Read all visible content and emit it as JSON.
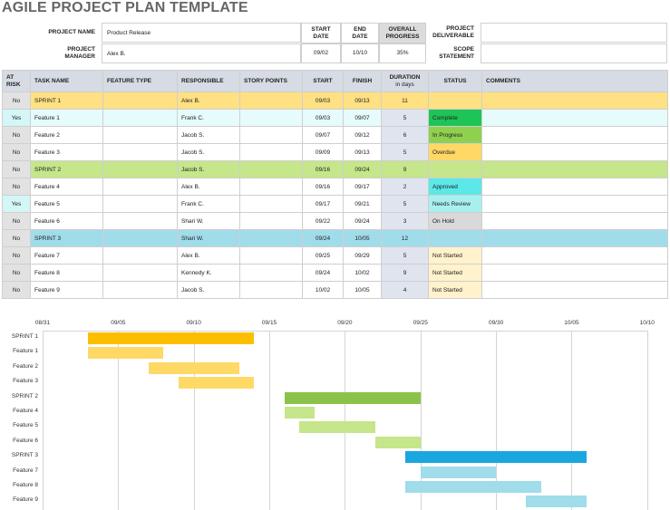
{
  "title": "AGILE PROJECT PLAN TEMPLATE",
  "summary": {
    "project_name_label": "PROJECT NAME",
    "project_name": "Product Release",
    "project_manager_label": "PROJECT MANAGER",
    "project_manager": "Alex B.",
    "start_date_label": "START DATE",
    "start_date": "09/02",
    "end_date_label": "END DATE",
    "end_date": "10/10",
    "overall_progress_label": "OVERALL PROGRESS",
    "overall_progress": "35%",
    "project_deliverable_label": "PROJECT DELIVERABLE",
    "project_deliverable": "",
    "scope_statement_label": "SCOPE STATEMENT",
    "scope_statement": ""
  },
  "table": {
    "headers": {
      "at_risk": "AT RISK",
      "task_name": "TASK NAME",
      "feature_type": "FEATURE TYPE",
      "responsible": "RESPONSIBLE",
      "story_points": "STORY POINTS",
      "start": "START",
      "finish": "FINISH",
      "duration": "DURATION",
      "duration_sub": "in days",
      "status": "STATUS",
      "comments": "COMMENTS"
    },
    "rows": [
      {
        "at_risk": "No",
        "task": "SPRINT 1",
        "feature_type": "",
        "responsible": "Alex B.",
        "story_points": "",
        "start": "09/03",
        "finish": "09/13",
        "duration": "11",
        "status": "",
        "comments": "",
        "kind": "sprint",
        "row_color": "#ffe082",
        "status_color": ""
      },
      {
        "at_risk": "Yes",
        "task": "Feature 1",
        "feature_type": "",
        "responsible": "Frank C.",
        "story_points": "",
        "start": "09/03",
        "finish": "09/07",
        "duration": "5",
        "status": "Complete",
        "comments": "",
        "kind": "feature",
        "row_color": "",
        "status_color": "#1fc457"
      },
      {
        "at_risk": "No",
        "task": "Feature 2",
        "feature_type": "",
        "responsible": "Jacob S.",
        "story_points": "",
        "start": "09/07",
        "finish": "09/12",
        "duration": "6",
        "status": "In Progress",
        "comments": "",
        "kind": "feature",
        "row_color": "",
        "status_color": "#8fd14f"
      },
      {
        "at_risk": "No",
        "task": "Feature 3",
        "feature_type": "",
        "responsible": "Jacob S.",
        "story_points": "",
        "start": "09/09",
        "finish": "09/13",
        "duration": "5",
        "status": "Overdue",
        "comments": "",
        "kind": "feature",
        "row_color": "",
        "status_color": "#ffd866"
      },
      {
        "at_risk": "No",
        "task": "SPRINT 2",
        "feature_type": "",
        "responsible": "Jacob S.",
        "story_points": "",
        "start": "09/16",
        "finish": "09/24",
        "duration": "9",
        "status": "",
        "comments": "",
        "kind": "sprint",
        "row_color": "#c5e68a",
        "status_color": ""
      },
      {
        "at_risk": "No",
        "task": "Feature 4",
        "feature_type": "",
        "responsible": "Alex B.",
        "story_points": "",
        "start": "09/16",
        "finish": "09/17",
        "duration": "2",
        "status": "Approved",
        "comments": "",
        "kind": "feature",
        "row_color": "",
        "status_color": "#5ce8e8"
      },
      {
        "at_risk": "Yes",
        "task": "Feature 5",
        "feature_type": "",
        "responsible": "Frank C.",
        "story_points": "",
        "start": "09/17",
        "finish": "09/21",
        "duration": "5",
        "status": "Needs Review",
        "comments": "",
        "kind": "feature",
        "row_color": "",
        "status_color": "#a8f0f0"
      },
      {
        "at_risk": "No",
        "task": "Feature 6",
        "feature_type": "",
        "responsible": "Shari W.",
        "story_points": "",
        "start": "09/22",
        "finish": "09/24",
        "duration": "3",
        "status": "On Hold",
        "comments": "",
        "kind": "feature",
        "row_color": "",
        "status_color": "#d9d9d9"
      },
      {
        "at_risk": "No",
        "task": "SPRINT 3",
        "feature_type": "",
        "responsible": "Shari W.",
        "story_points": "",
        "start": "09/24",
        "finish": "10/05",
        "duration": "12",
        "status": "",
        "comments": "",
        "kind": "sprint",
        "row_color": "#a0dcea",
        "status_color": ""
      },
      {
        "at_risk": "No",
        "task": "Feature 7",
        "feature_type": "",
        "responsible": "Alex B.",
        "story_points": "",
        "start": "09/25",
        "finish": "09/29",
        "duration": "5",
        "status": "Not Started",
        "comments": "",
        "kind": "feature",
        "row_color": "",
        "status_color": "#fff2cc"
      },
      {
        "at_risk": "No",
        "task": "Feature 8",
        "feature_type": "",
        "responsible": "Kennedy K.",
        "story_points": "",
        "start": "09/24",
        "finish": "10/02",
        "duration": "9",
        "status": "Not Started",
        "comments": "",
        "kind": "feature",
        "row_color": "",
        "status_color": "#fff2cc"
      },
      {
        "at_risk": "No",
        "task": "Feature 9",
        "feature_type": "",
        "responsible": "Jacob S.",
        "story_points": "",
        "start": "10/02",
        "finish": "10/05",
        "duration": "4",
        "status": "Not Started",
        "comments": "",
        "kind": "feature",
        "row_color": "",
        "status_color": "#fff2cc"
      }
    ]
  },
  "colors": {
    "header_bg": "#d6dbe4",
    "at_risk_yes": "#d4f6f6",
    "at_risk_no": "#e2e2e2",
    "duration_cell": "#dfe4ef",
    "feature_row_sprint1": "#e6fbfb"
  },
  "chart_data": {
    "type": "gantt",
    "x_ticks": [
      "08/31",
      "09/05",
      "09/10",
      "09/15",
      "09/20",
      "09/25",
      "09/30",
      "10/05",
      "10/10"
    ],
    "tasks": [
      {
        "name": "SPRINT 1",
        "start_day": 3,
        "end_day": 14,
        "color": "#fbbf00"
      },
      {
        "name": "Feature 1",
        "start_day": 3,
        "end_day": 8,
        "color": "#ffd966"
      },
      {
        "name": "Feature 2",
        "start_day": 7,
        "end_day": 13,
        "color": "#ffd966"
      },
      {
        "name": "Feature 3",
        "start_day": 9,
        "end_day": 14,
        "color": "#ffd966"
      },
      {
        "name": "SPRINT 2",
        "start_day": 16,
        "end_day": 25,
        "color": "#8bc34a"
      },
      {
        "name": "Feature 4",
        "start_day": 16,
        "end_day": 18,
        "color": "#c5e68a"
      },
      {
        "name": "Feature 5",
        "start_day": 17,
        "end_day": 22,
        "color": "#c5e68a"
      },
      {
        "name": "Feature 6",
        "start_day": 22,
        "end_day": 25,
        "color": "#c5e68a"
      },
      {
        "name": "SPRINT 3",
        "start_day": 24,
        "end_day": 36,
        "color": "#1aa7e0"
      },
      {
        "name": "Feature 7",
        "start_day": 25,
        "end_day": 30,
        "color": "#a0dcea"
      },
      {
        "name": "Feature 8",
        "start_day": 24,
        "end_day": 33,
        "color": "#a0dcea"
      },
      {
        "name": "Feature 9",
        "start_day": 32,
        "end_day": 36,
        "color": "#a0dcea"
      }
    ]
  }
}
